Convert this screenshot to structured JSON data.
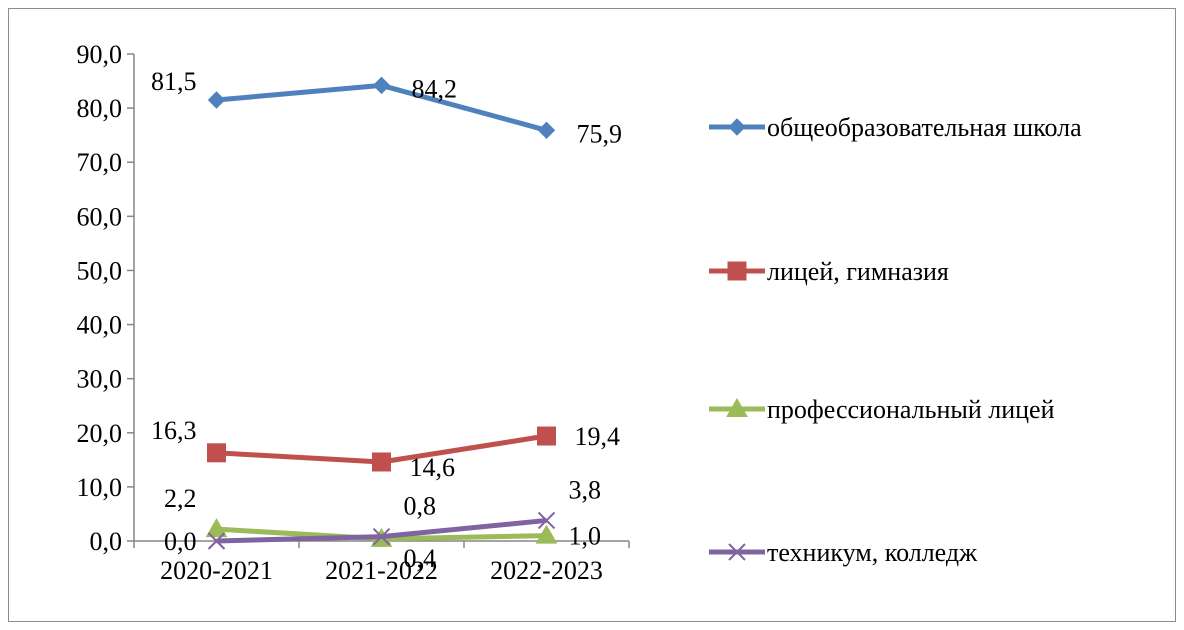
{
  "chart_data": {
    "type": "line",
    "categories": [
      "2020-2021",
      "2021-2022",
      "2022-2023"
    ],
    "ylim": [
      0,
      90
    ],
    "y_ticks": [
      "0,0",
      "10,0",
      "20,0",
      "30,0",
      "40,0",
      "50,0",
      "60,0",
      "70,0",
      "80,0",
      "90,0"
    ],
    "grid": false,
    "legend_position": "right",
    "series": [
      {
        "name": "общеобразовательная школа",
        "values": [
          81.5,
          84.2,
          75.9
        ],
        "labels": [
          "81,5",
          "84,2",
          "75,9"
        ],
        "color": "#4f81bd",
        "marker": "diamond"
      },
      {
        "name": "лицей, гимназия",
        "values": [
          16.3,
          14.6,
          19.4
        ],
        "labels": [
          "16,3",
          "14,6",
          "19,4"
        ],
        "color": "#c0504d",
        "marker": "square"
      },
      {
        "name": "профессиональный лицей",
        "values": [
          2.2,
          0.4,
          1.0
        ],
        "labels": [
          "2,2",
          "0,4",
          "1,0"
        ],
        "color": "#9bbb59",
        "marker": "triangle"
      },
      {
        "name": "техникум, колледж",
        "values": [
          0.0,
          0.8,
          3.8
        ],
        "labels": [
          "0,0",
          "0,8",
          "3,8"
        ],
        "color": "#8064a2",
        "marker": "x"
      }
    ]
  }
}
